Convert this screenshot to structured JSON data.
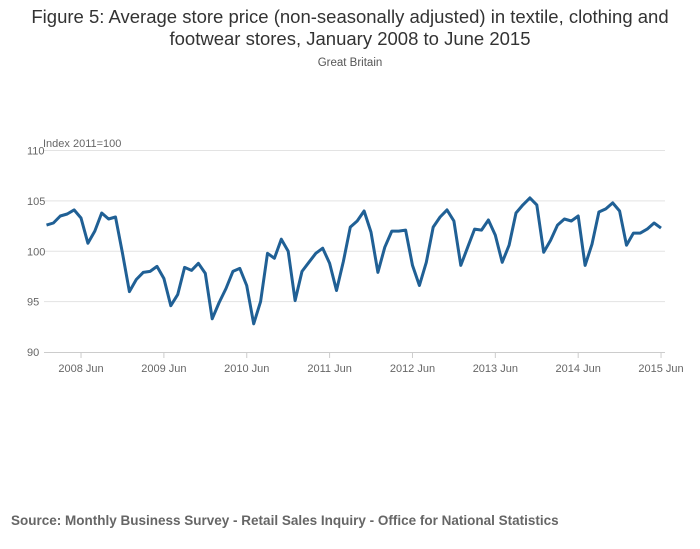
{
  "chart_data": {
    "type": "line",
    "title": "Figure 5: Average store price (non-seasonally adjusted) in textile, clothing and footwear stores, January 2008 to June 2015",
    "subtitle": "Great Britain",
    "ylabel": "Index 2011=100",
    "xlabel": "",
    "ylim": [
      90,
      110
    ],
    "yticks": [
      "110",
      "105",
      "100",
      "95",
      "90"
    ],
    "ytick_values": [
      110,
      105,
      100,
      95,
      90
    ],
    "xticks": [
      "2008 Jun",
      "2009 Jun",
      "2010 Jun",
      "2011 Jun",
      "2012 Jun",
      "2013 Jun",
      "2014 Jun",
      "2015 Jun"
    ],
    "xtick_month_index": [
      5,
      17,
      29,
      41,
      53,
      65,
      77,
      89
    ],
    "grid": true,
    "legend": "none",
    "series": [
      {
        "name": "Average store price",
        "color": "#206095",
        "start": "2008-01",
        "values": [
          102.6,
          102.8,
          103.5,
          103.7,
          104.1,
          103.3,
          100.8,
          102.0,
          103.8,
          103.2,
          103.4,
          99.8,
          96.0,
          97.2,
          97.9,
          98.0,
          98.5,
          97.3,
          94.6,
          95.7,
          98.4,
          98.1,
          98.8,
          97.8,
          93.3,
          94.9,
          96.3,
          98.0,
          98.3,
          96.6,
          92.8,
          95.0,
          99.8,
          99.3,
          101.2,
          100.0,
          95.1,
          98.0,
          98.9,
          99.8,
          100.3,
          98.8,
          96.1,
          99.0,
          102.4,
          103.0,
          104.0,
          101.9,
          97.9,
          100.4,
          102.0,
          102.0,
          102.1,
          98.6,
          96.6,
          98.9,
          102.4,
          103.4,
          104.1,
          103.0,
          98.6,
          100.4,
          102.2,
          102.1,
          103.1,
          101.6,
          98.9,
          100.6,
          103.8,
          104.6,
          105.3,
          104.6,
          99.9,
          101.1,
          102.6,
          103.2,
          103.0,
          103.5,
          98.6,
          100.7,
          103.9,
          104.2,
          104.8,
          104.0,
          100.6,
          101.8,
          101.8,
          102.2,
          102.8,
          102.3
        ]
      }
    ]
  },
  "source": "Source: Monthly Business Survey - Retail Sales Inquiry - Office for National Statistics"
}
